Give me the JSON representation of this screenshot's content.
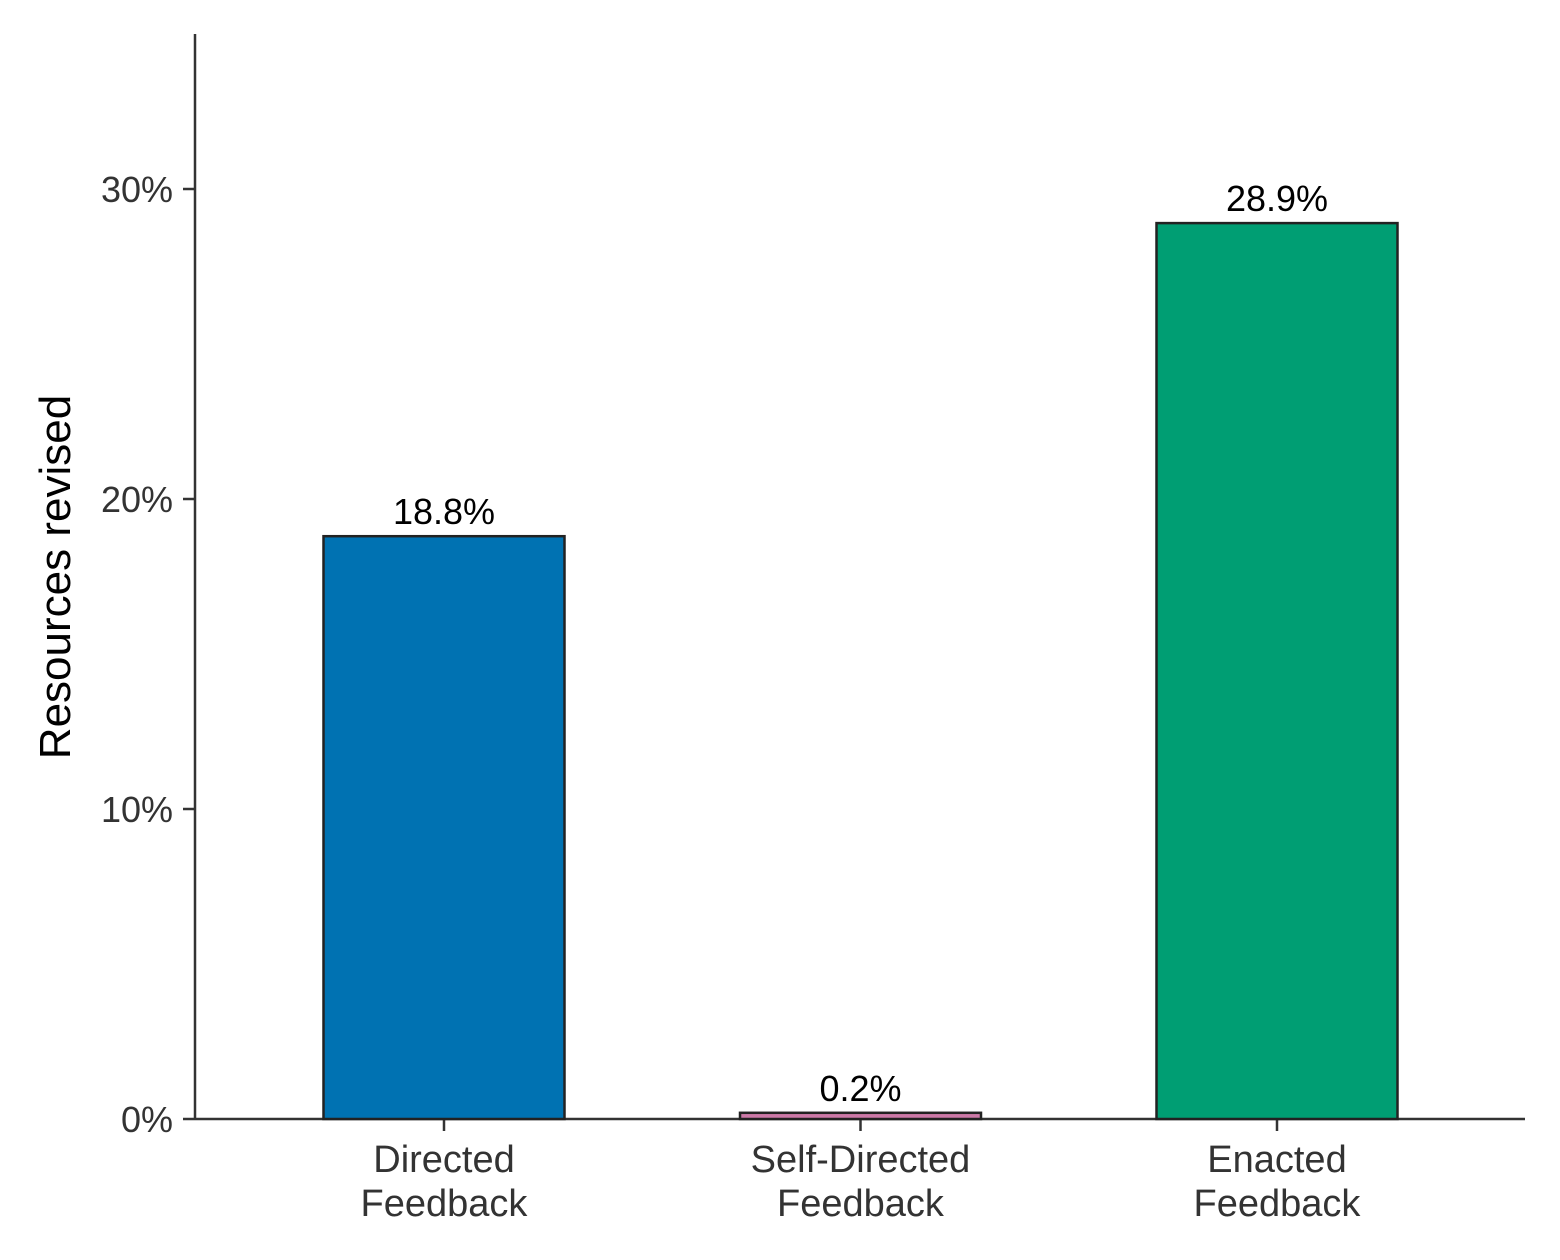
{
  "chart_data": {
    "type": "bar",
    "title": "",
    "xlabel": "",
    "ylabel": "Resources revised",
    "ylim": [
      0,
      35
    ],
    "y_ticks": [
      0,
      10,
      20,
      30
    ],
    "y_tick_labels": [
      "0%",
      "10%",
      "20%",
      "30%"
    ],
    "categories": [
      [
        "Directed",
        "Feedback"
      ],
      [
        "Self-Directed",
        "Feedback"
      ],
      [
        "Enacted",
        "Feedback"
      ]
    ],
    "values": [
      18.8,
      0.2,
      28.9
    ],
    "data_labels": [
      "18.8%",
      "0.2%",
      "28.9%"
    ],
    "colors": [
      "#0072B2",
      "#CC79A7",
      "#009E73"
    ],
    "bar_outline_color": "#222222",
    "axis_color": "#333333",
    "grid": false,
    "legend": "none"
  }
}
